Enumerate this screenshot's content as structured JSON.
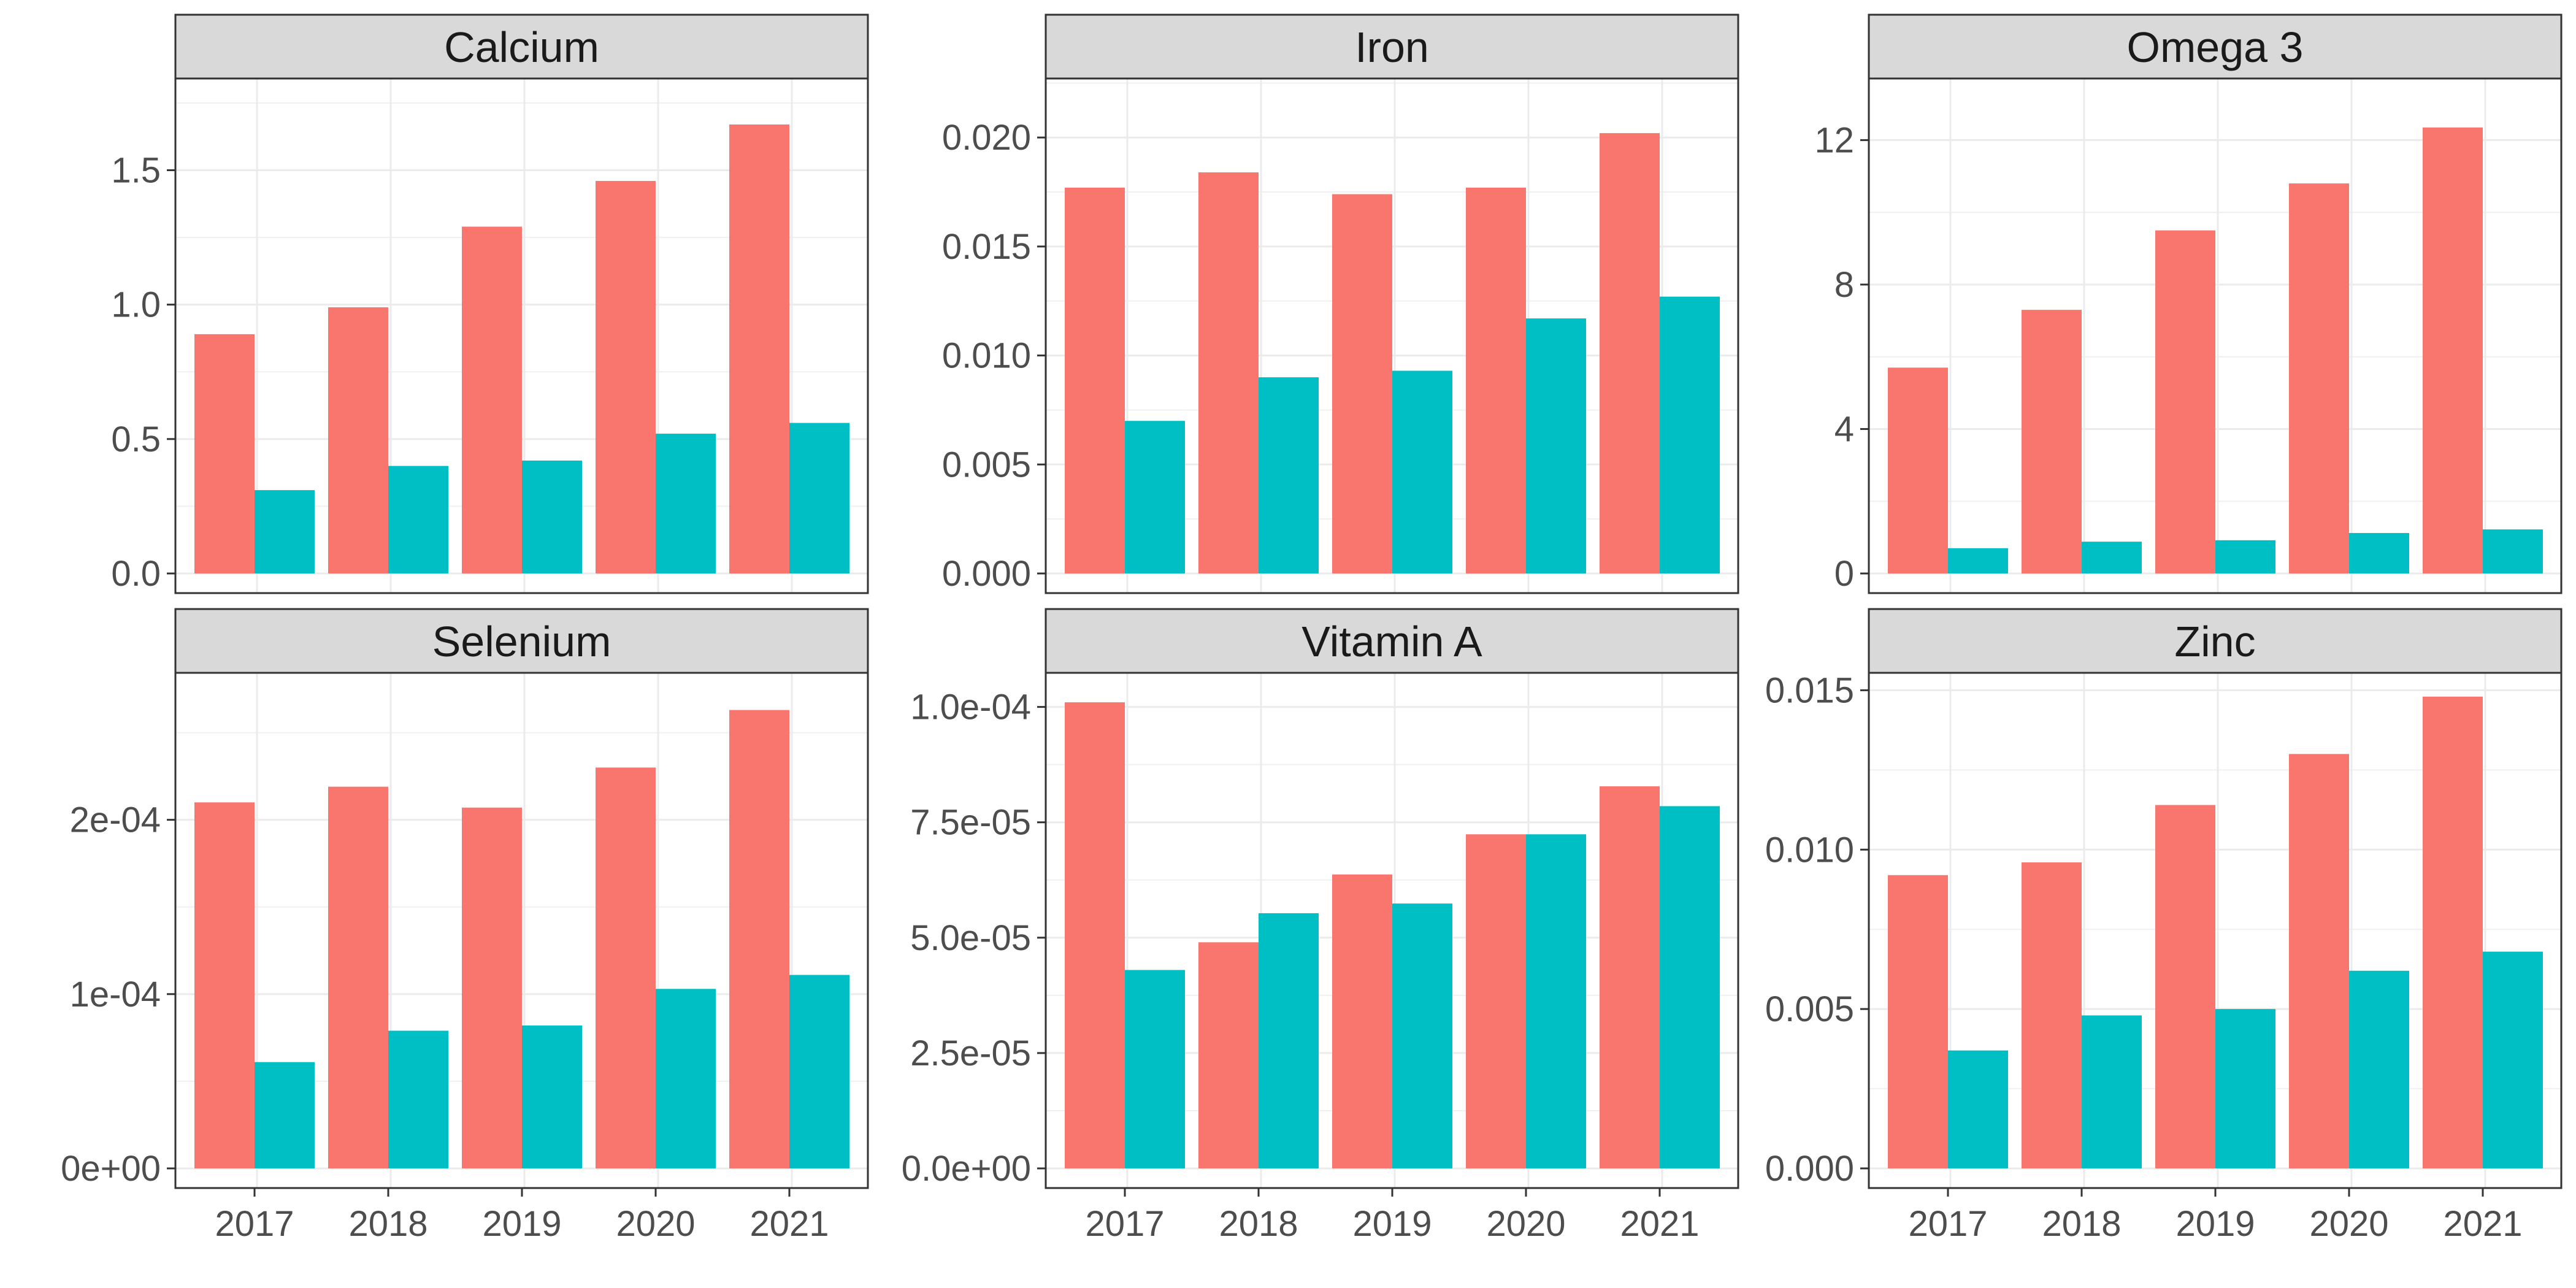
{
  "chart_data": {
    "type": "bar",
    "categories": [
      "2017",
      "2018",
      "2019",
      "2020",
      "2021"
    ],
    "series_colors": [
      "#F8766D",
      "#00BFC4"
    ],
    "grid": true,
    "legend": "none",
    "panels": [
      {
        "title": "Calcium",
        "ylim": [
          0,
          1.8
        ],
        "ticks": [
          0,
          0.5,
          1.0,
          1.5
        ],
        "tick_labels": [
          "0.0",
          "0.5",
          "1.0",
          "1.5"
        ],
        "series": [
          {
            "values": [
              0.89,
              0.99,
              1.29,
              1.46,
              1.67
            ]
          },
          {
            "values": [
              0.31,
              0.4,
              0.42,
              0.52,
              0.56
            ]
          }
        ]
      },
      {
        "title": "Iron",
        "ylim": [
          0,
          0.0222
        ],
        "ticks": [
          0,
          0.005,
          0.01,
          0.015,
          0.02
        ],
        "tick_labels": [
          "0.000",
          "0.005",
          "0.010",
          "0.015",
          "0.020"
        ],
        "series": [
          {
            "values": [
              0.0177,
              0.0184,
              0.0174,
              0.0177,
              0.0202
            ]
          },
          {
            "values": [
              0.007,
              0.009,
              0.0093,
              0.0117,
              0.0127
            ]
          }
        ]
      },
      {
        "title": "Omega 3",
        "ylim": [
          0,
          13.4
        ],
        "ticks": [
          0,
          4,
          8,
          12
        ],
        "tick_labels": [
          "0",
          "4",
          "8",
          "12"
        ],
        "series": [
          {
            "values": [
              5.7,
              7.3,
              9.5,
              10.8,
              12.35
            ]
          },
          {
            "values": [
              0.7,
              0.88,
              0.92,
              1.12,
              1.22
            ]
          }
        ]
      },
      {
        "title": "Selenium",
        "ylim": [
          0,
          0.000278
        ],
        "ticks": [
          0,
          0.0001,
          0.0002
        ],
        "tick_labels": [
          "0e+00",
          "1e-04",
          "2e-04"
        ],
        "series": [
          {
            "values": [
              0.00021,
              0.000219,
              0.000207,
              0.00023,
              0.000263
            ]
          },
          {
            "values": [
              6.1e-05,
              7.9e-05,
              8.2e-05,
              0.000103,
              0.000111
            ]
          }
        ]
      },
      {
        "title": "Vitamin A",
        "ylim": [
          0,
          0.000105
        ],
        "ticks": [
          0,
          2.5e-05,
          5e-05,
          7.5e-05,
          0.0001
        ],
        "tick_labels": [
          "0.0e+00",
          "2.5e-05",
          "5.0e-05",
          "7.5e-05",
          "1.0e-04"
        ],
        "series": [
          {
            "values": [
              0.000101,
              4.9e-05,
              6.37e-05,
              7.24e-05,
              8.28e-05
            ]
          },
          {
            "values": [
              4.3e-05,
              5.53e-05,
              5.74e-05,
              7.24e-05,
              7.85e-05
            ]
          }
        ]
      },
      {
        "title": "Zinc",
        "ylim": [
          0,
          0.0152
        ],
        "ticks": [
          0,
          0.005,
          0.01,
          0.015
        ],
        "tick_labels": [
          "0.000",
          "0.005",
          "0.010",
          "0.015"
        ],
        "series": [
          {
            "values": [
              0.0092,
              0.0096,
              0.0114,
              0.013,
              0.0148
            ]
          },
          {
            "values": [
              0.0037,
              0.0048,
              0.005,
              0.0062,
              0.0068
            ]
          }
        ]
      }
    ]
  }
}
